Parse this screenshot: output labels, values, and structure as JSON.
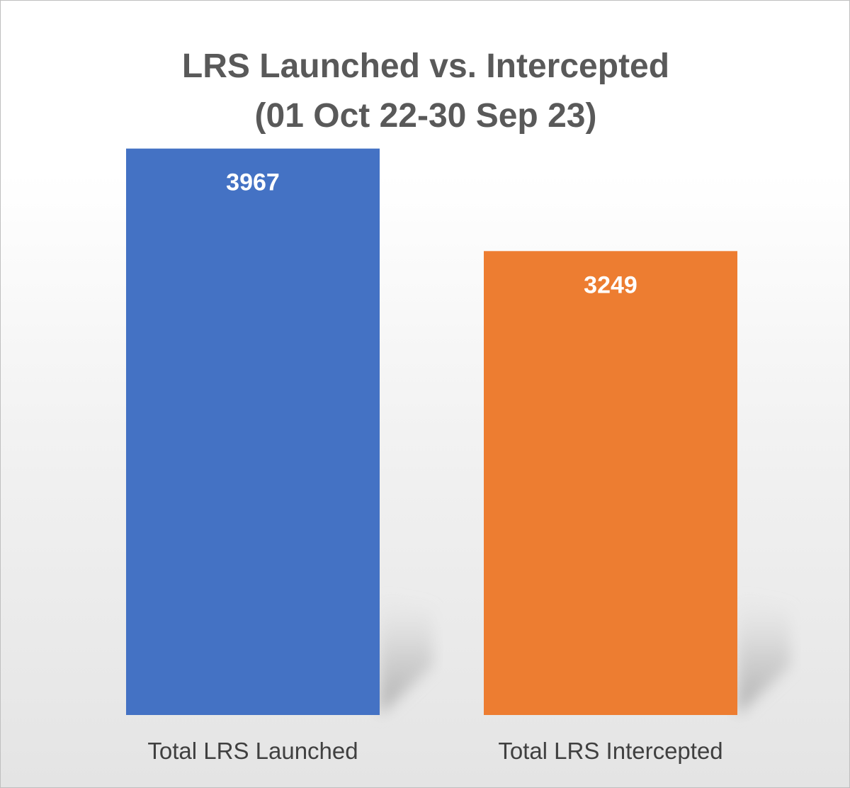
{
  "chart_data": {
    "type": "bar",
    "title_lines": [
      "LRS Launched vs. Intercepted",
      "(01 Oct 22-30 Sep 23)"
    ],
    "categories": [
      "Total LRS Launched",
      "Total LRS Intercepted"
    ],
    "values": [
      3967,
      3249
    ],
    "data_labels": [
      "3967",
      "3249"
    ],
    "colors": [
      "#4472c4",
      "#ed7d31"
    ],
    "ylim": [
      0,
      4000
    ],
    "grid": false,
    "legend": "none",
    "xlabel": "",
    "ylabel": ""
  }
}
